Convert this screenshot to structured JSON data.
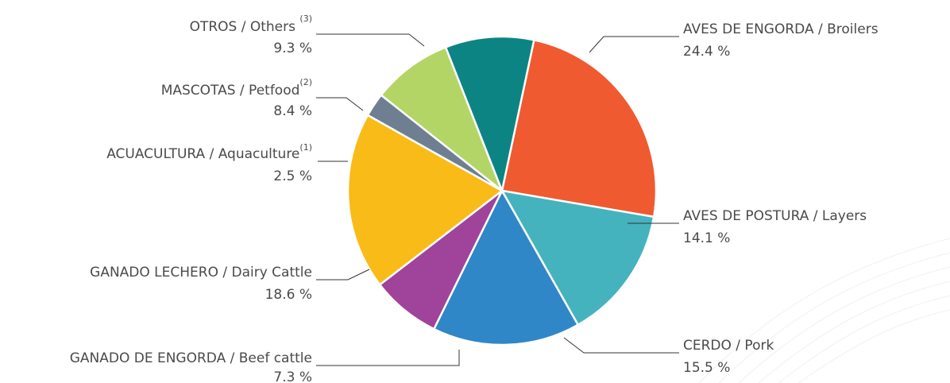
{
  "chart_data": {
    "type": "pie",
    "unit": "%",
    "slices": [
      {
        "name": "AVES DE ENGORDA / Broilers",
        "note": "",
        "value": 24.4,
        "value_label": "24.4 %",
        "color": "#f05a30"
      },
      {
        "name": "AVES DE POSTURA / Layers",
        "note": "",
        "value": 14.1,
        "value_label": "14.1 %",
        "color": "#45b3bd"
      },
      {
        "name": "CERDO  / Pork",
        "note": "",
        "value": 15.5,
        "value_label": "15.5 %",
        "color": "#2f87c7"
      },
      {
        "name": "GANADO DE ENGORDA / Beef cattle",
        "note": "",
        "value": 7.3,
        "value_label": "7.3 %",
        "color": "#a0439a"
      },
      {
        "name": "GANADO LECHERO / Dairy Cattle",
        "note": "",
        "value": 18.6,
        "value_label": "18.6 %",
        "color": "#f9bb18"
      },
      {
        "name": "ACUACULTURA / Aquaculture",
        "note": "(1)",
        "value": 2.5,
        "value_label": "2.5 %",
        "color": "#6e7f91"
      },
      {
        "name": "MASCOTAS / Petfood",
        "note": "(2)",
        "value": 8.4,
        "value_label": "8.4 %",
        "color": "#b3d566"
      },
      {
        "name": "OTROS / Others ",
        "note": "(3)",
        "value": 9.3,
        "value_label": "9.3 %",
        "color": "#0d8484"
      }
    ]
  }
}
